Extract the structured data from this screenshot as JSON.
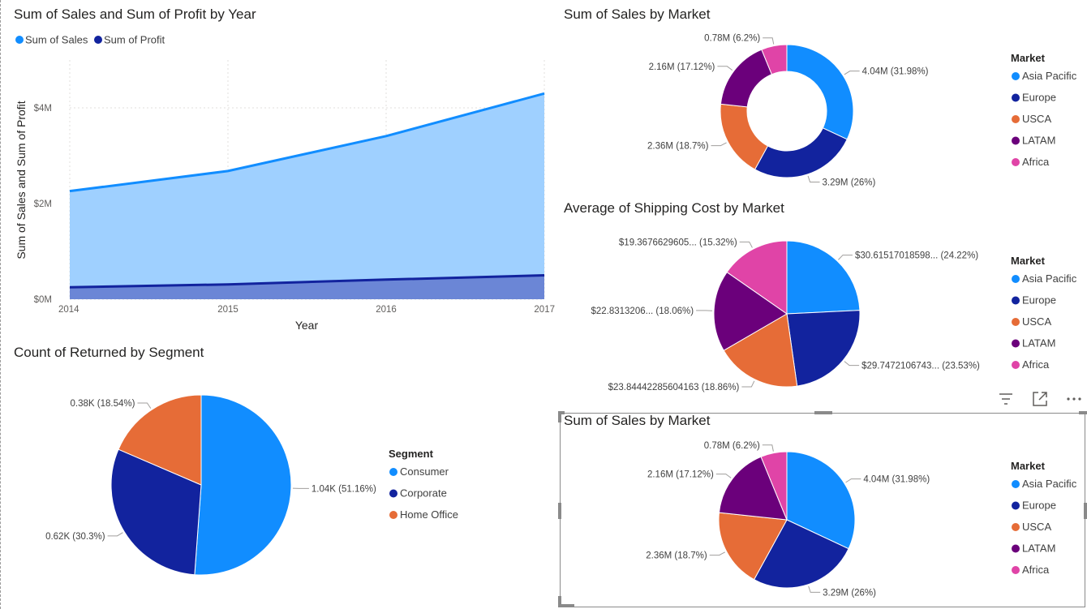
{
  "colors": {
    "asia_pacific": "#118DFF",
    "europe": "#12239E",
    "usca": "#E66C37",
    "latam": "#6B007B",
    "africa": "#E044A7",
    "sales_line": "#118DFF",
    "sales_area": "#9FD0FF",
    "profit_line": "#12239E",
    "profit_area": "#6B86D6"
  },
  "icons": [
    "filter-icon",
    "focus-mode-icon",
    "more-options-icon"
  ],
  "chart_data": [
    {
      "type": "area",
      "title": "Sum of Sales and Sum of Profit by Year",
      "xlabel": "Year",
      "ylabel": "Sum of Sales and Sum of Profit",
      "x": [
        "2014",
        "2015",
        "2016",
        "2017"
      ],
      "series": [
        {
          "name": "Sum of Sales",
          "values": [
            2.26,
            2.68,
            3.41,
            4.3
          ]
        },
        {
          "name": "Sum of Profit",
          "values": [
            0.25,
            0.31,
            0.41,
            0.5
          ]
        }
      ],
      "y_unit": "M",
      "yticks": [
        "$0M",
        "$2M",
        "$4M"
      ],
      "ylim": [
        0,
        5
      ],
      "legend_position": "top-left",
      "grid": true
    },
    {
      "type": "pie",
      "variant": "donut",
      "title": "Sum of Sales by Market",
      "legend_title": "Market",
      "categories": [
        "Asia Pacific",
        "Europe",
        "USCA",
        "LATAM",
        "Africa"
      ],
      "values": [
        31.98,
        26,
        18.7,
        17.12,
        6.2
      ],
      "labels": [
        "4.04M (31.98%)",
        "3.29M (26%)",
        "2.36M (18.7%)",
        "2.16M (17.12%)",
        "0.78M (6.2%)"
      ]
    },
    {
      "type": "pie",
      "title": "Average of Shipping Cost by Market",
      "legend_title": "Market",
      "categories": [
        "Asia Pacific",
        "Europe",
        "USCA",
        "LATAM",
        "Africa"
      ],
      "values": [
        24.22,
        23.53,
        18.86,
        18.06,
        15.32
      ],
      "labels": [
        "$30.61517018598... (24.22%)",
        "$29.7472106743... (23.53%)",
        "$23.84442285604163 (18.86%)",
        "$22.8313206... (18.06%)",
        "$19.3676629605... (15.32%)"
      ]
    },
    {
      "type": "pie",
      "title": "Count of Returned by Segment",
      "legend_title": "Segment",
      "categories": [
        "Consumer",
        "Corporate",
        "Home Office"
      ],
      "values": [
        51.16,
        30.3,
        18.54
      ],
      "labels": [
        "1.04K (51.16%)",
        "0.62K (30.3%)",
        "0.38K (18.54%)"
      ]
    },
    {
      "type": "pie",
      "title": "Sum of Sales by Market",
      "legend_title": "Market",
      "categories": [
        "Asia Pacific",
        "Europe",
        "USCA",
        "LATAM",
        "Africa"
      ],
      "values": [
        31.98,
        26,
        18.7,
        17.12,
        6.2
      ],
      "labels": [
        "4.04M (31.98%)",
        "3.29M (26%)",
        "2.36M (18.7%)",
        "2.16M (17.12%)",
        "0.78M (6.2%)"
      ]
    }
  ]
}
